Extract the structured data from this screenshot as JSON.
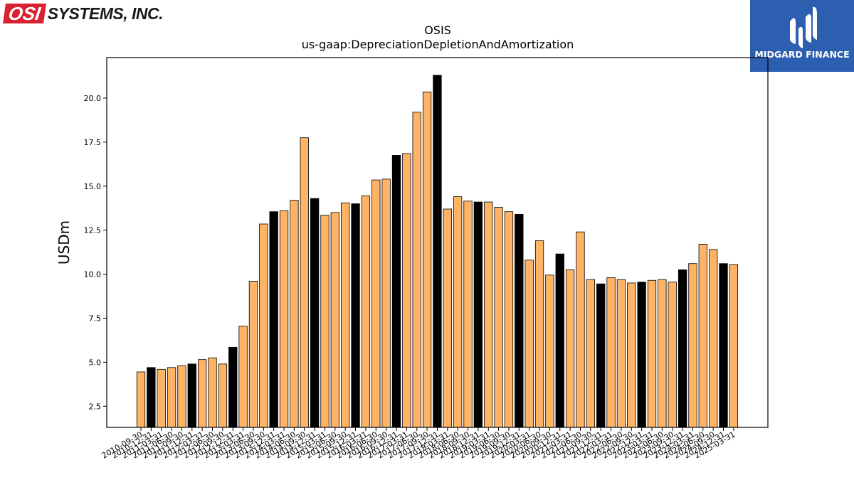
{
  "brand": {
    "logo_text": "OSI",
    "company": "SYSTEMS, INC."
  },
  "partner": {
    "name": "MIDGARD FINANCE"
  },
  "colors": {
    "bar_default": "#ffb364",
    "bar_highlight": "#000000",
    "bar_edge": "#000000",
    "partner_bg": "#2c5fb0",
    "brand_red": "#d9222f"
  },
  "chart_data": {
    "type": "bar",
    "title": "OSIS",
    "subtitle": "us-gaap:DepreciationDepletionAndAmortization",
    "ylabel": "USDm",
    "xlabel": "",
    "ylim": [
      1.3,
      22.3
    ],
    "yticks": [
      2.5,
      5.0,
      7.5,
      10.0,
      12.5,
      15.0,
      17.5,
      20.0
    ],
    "ytick_labels": [
      "2.5",
      "5.0",
      "7.5",
      "10.0",
      "12.5",
      "15.0",
      "17.5",
      "20.0"
    ],
    "grid": false,
    "categories": [
      "2010-09-30",
      "2010-12-31",
      "2011-03-31",
      "2011-06-30",
      "2011-09-30",
      "2011-12-31",
      "2012-03-31",
      "2012-06-30",
      "2012-09-30",
      "2012-12-31",
      "2013-03-31",
      "2013-06-30",
      "2013-09-30",
      "2013-12-31",
      "2014-03-31",
      "2014-06-30",
      "2014-09-30",
      "2014-12-31",
      "2015-03-31",
      "2015-06-30",
      "2015-09-30",
      "2015-12-31",
      "2016-03-31",
      "2016-06-30",
      "2016-09-30",
      "2016-12-31",
      "2017-03-31",
      "2017-06-30",
      "2017-09-30",
      "2017-12-31",
      "2018-03-31",
      "2018-06-30",
      "2018-09-30",
      "2018-12-31",
      "2019-03-31",
      "2019-06-30",
      "2019-09-30",
      "2019-12-31",
      "2020-03-31",
      "2020-06-30",
      "2020-09-30",
      "2020-12-31",
      "2021-03-31",
      "2021-06-30",
      "2021-09-30",
      "2021-12-31",
      "2022-03-31",
      "2022-06-30",
      "2022-09-30",
      "2022-12-31",
      "2023-03-31",
      "2023-06-30",
      "2023-09-30",
      "2023-12-31",
      "2024-03-31",
      "2024-06-30",
      "2024-09-30",
      "2024-12-31",
      "2025-03-31"
    ],
    "values": [
      4.45,
      4.7,
      4.6,
      4.7,
      4.8,
      4.9,
      5.15,
      5.25,
      4.9,
      5.85,
      7.05,
      9.6,
      12.85,
      13.55,
      13.6,
      14.2,
      17.75,
      14.3,
      13.35,
      13.5,
      14.05,
      14.0,
      14.45,
      15.35,
      15.4,
      16.75,
      16.85,
      19.2,
      20.35,
      21.3,
      13.7,
      14.4,
      14.15,
      14.1,
      14.1,
      13.8,
      13.55,
      13.4,
      10.8,
      11.9,
      9.95,
      11.15,
      10.25,
      12.4,
      9.7,
      9.45,
      9.8,
      9.7,
      9.5,
      9.55,
      9.65,
      9.7,
      9.55,
      10.25,
      10.6,
      11.7,
      11.4,
      10.6,
      10.55
    ],
    "highlight": [
      false,
      true,
      false,
      false,
      false,
      true,
      false,
      false,
      false,
      true,
      false,
      false,
      false,
      true,
      false,
      false,
      false,
      true,
      false,
      false,
      false,
      true,
      false,
      false,
      false,
      true,
      false,
      false,
      false,
      true,
      false,
      false,
      false,
      true,
      false,
      false,
      false,
      true,
      false,
      false,
      false,
      true,
      false,
      false,
      false,
      true,
      false,
      false,
      false,
      true,
      false,
      false,
      false,
      true,
      false,
      false,
      false,
      true,
      false
    ]
  }
}
